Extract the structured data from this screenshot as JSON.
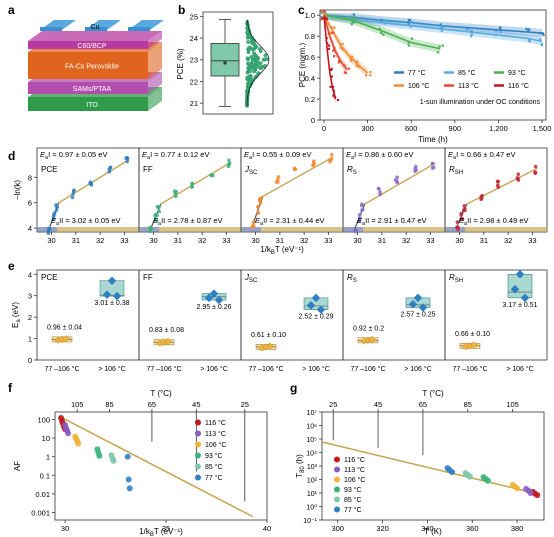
{
  "panels": {
    "a": {
      "label": "a",
      "layers": [
        {
          "name": "Cu",
          "color": "#5aaadf"
        },
        {
          "name": "C60/BCP",
          "color": "#b83aa0"
        },
        {
          "name": "FA-Cs Perovskite",
          "color": "#e0641e"
        },
        {
          "name": "SAMs/PTAA",
          "color": "#b24fae"
        },
        {
          "name": "ITO",
          "color": "#2f9a4a"
        }
      ]
    },
    "b": {
      "label": "b",
      "ylabel": "PCE (%)",
      "ylim": [
        20.5,
        25.2
      ],
      "yticks": [
        21,
        22,
        23,
        24,
        25
      ],
      "box": {
        "min": 20.85,
        "q1": 22.25,
        "median": 22.95,
        "q3": 23.75,
        "max": 24.85,
        "mean": 22.85
      },
      "box_color": "#7fc8a9",
      "point_color": "#3ab07a"
    },
    "c": {
      "label": "c",
      "ylabel": "PCE (norm.)",
      "xlabel": "Time (h)",
      "xticks": [
        0,
        300,
        600,
        900,
        1200,
        1500
      ],
      "yticks": [
        0,
        0.2,
        0.4,
        0.6,
        0.8,
        1.0
      ],
      "ytick_labels": [
        "0",
        "0.2",
        "0.4",
        "0.6",
        "0.8",
        "1.0"
      ],
      "xlim": [
        0,
        1500
      ],
      "ylim": [
        0,
        1.05
      ],
      "annotation": "1-sun illumination under OC conditions",
      "legend": [
        "77 °C",
        "85 °C",
        "93 °C",
        "106 °C",
        "113 °C",
        "116 °C"
      ],
      "series": [
        {
          "name": "77 °C",
          "color": "#2f7fc1",
          "x": [
            0,
            200,
            400,
            600,
            800,
            1000,
            1200,
            1400,
            1500
          ],
          "y": [
            1.0,
            0.98,
            0.95,
            0.93,
            0.9,
            0.88,
            0.86,
            0.84,
            0.83
          ]
        },
        {
          "name": "85 °C",
          "color": "#5aaadf",
          "x": [
            0,
            200,
            400,
            600,
            800,
            1000,
            1200,
            1400,
            1500
          ],
          "y": [
            1.0,
            0.96,
            0.93,
            0.9,
            0.87,
            0.84,
            0.81,
            0.78,
            0.75
          ]
        },
        {
          "name": "93 °C",
          "color": "#4caf50",
          "x": [
            0,
            200,
            400,
            600,
            800
          ],
          "y": [
            1.0,
            0.95,
            0.85,
            0.74,
            0.68
          ]
        },
        {
          "name": "106 °C",
          "color": "#f58a34",
          "x": [
            0,
            60,
            120,
            180,
            240,
            300
          ],
          "y": [
            1.0,
            0.85,
            0.7,
            0.6,
            0.52,
            0.45
          ]
        },
        {
          "name": "113 °C",
          "color": "#e24a33",
          "x": [
            0,
            40,
            80,
            120,
            160
          ],
          "y": [
            1.0,
            0.8,
            0.65,
            0.55,
            0.48
          ]
        },
        {
          "name": "116 °C",
          "color": "#c0181e",
          "x": [
            0,
            20,
            40,
            60,
            80
          ],
          "y": [
            1.0,
            0.7,
            0.45,
            0.3,
            0.2
          ]
        }
      ]
    },
    "d": {
      "label": "d",
      "ylabel": "−ln(k)",
      "xlabel": "1/k",
      "xlabel_sub": "B",
      "xlabel_tail": "T (eV⁻¹)",
      "xticks": [
        30,
        31,
        32,
        33
      ],
      "yticks": [
        4,
        6,
        8
      ],
      "xlim": [
        29.4,
        33.6
      ],
      "ylim": [
        3.7,
        10.3
      ],
      "subpanels": [
        {
          "name": "PCE",
          "eaI": "0.97 ± 0.05 eV",
          "eaII": "3.02 ± 0.05 eV",
          "color": "#2f7fc1",
          "x": [
            29.9,
            30.1,
            30.2,
            30.9,
            31.6,
            32.4,
            33.1
          ],
          "y": [
            3.9,
            4.9,
            5.7,
            6.7,
            7.6,
            8.5,
            9.3
          ]
        },
        {
          "name": "FF",
          "eaI": "0.77 ± 0.12 eV",
          "eaII": "2.78 ± 0.87 eV",
          "color": "#3ab07a",
          "x": [
            29.9,
            30.1,
            30.2,
            30.9,
            31.6,
            32.4,
            33.1
          ],
          "y": [
            4.0,
            4.8,
            5.6,
            6.8,
            7.5,
            8.4,
            9.1
          ]
        },
        {
          "name": "J",
          "name_sub": "SC",
          "eaI": "0.55 ± 0.09 eV",
          "eaII": "2.31 ± 0.44 eV",
          "color": "#f58a34",
          "x": [
            29.9,
            30.1,
            30.2,
            30.9,
            31.6,
            32.4,
            33.1
          ],
          "y": [
            4.3,
            5.4,
            6.2,
            7.8,
            8.5,
            9.1,
            9.5
          ]
        },
        {
          "name": "R",
          "name_sub": "S",
          "eaI": "0.86 ± 0.60 eV",
          "eaII": "2.91 ± 0.47 eV",
          "color": "#8a6cc8",
          "x": [
            29.9,
            30.1,
            30.2,
            30.9,
            31.6,
            32.4,
            33.1
          ],
          "y": [
            4.0,
            4.8,
            5.6,
            6.9,
            7.8,
            8.6,
            9.0
          ]
        },
        {
          "name": "R",
          "name_sub": "SH",
          "eaI": "0.66 ± 0.47 eV",
          "eaII": "2.98 ± 0.49 eV",
          "color": "#c0283a",
          "x": [
            29.9,
            30.1,
            30.2,
            30.9,
            31.6,
            32.4,
            33.1
          ],
          "y": [
            4.2,
            4.9,
            5.6,
            6.5,
            7.4,
            8.0,
            8.6
          ]
        }
      ]
    },
    "e": {
      "label": "e",
      "ylabel": "E",
      "ylabel_sub": "a",
      "ylabel_tail": " (eV)",
      "yticks": [
        0,
        1,
        2,
        3,
        4
      ],
      "ylim": [
        0,
        4.2
      ],
      "categories": [
        "77 –106 °C",
        "> 106 °C"
      ],
      "low_color": "#f0b43a",
      "high_color": "#2e7fc1",
      "subpanels": [
        {
          "name": "PCE",
          "low": 0.96,
          "low_label": "0.96 ± 0.04",
          "high": 3.01,
          "high_label": "3.01 ± 0.38",
          "high_points": [
            3.7,
            3.05,
            2.98
          ]
        },
        {
          "name": "FF",
          "low": 0.83,
          "low_label": "0.83 ± 0.08",
          "high": 2.95,
          "high_label": "2.95 ± 0.26",
          "high_points": [
            3.1,
            2.9,
            2.8
          ]
        },
        {
          "name": "J",
          "name_sub": "SC",
          "low": 0.61,
          "low_label": "0.61 ± 0.10",
          "high": 2.52,
          "high_label": "2.52 ± 0.29",
          "high_points": [
            2.9,
            2.55,
            2.35
          ]
        },
        {
          "name": "R",
          "name_sub": "S",
          "low": 0.92,
          "low_label": "0.92 ± 0.2",
          "high": 2.57,
          "high_label": "2.57 ± 0.25",
          "high_points": [
            2.9,
            2.6,
            2.45
          ]
        },
        {
          "name": "R",
          "name_sub": "SH",
          "low": 0.66,
          "low_label": "0.66 ± 0.10",
          "high": 3.17,
          "high_label": "3.17 ± 0.51",
          "high_points": [
            4.0,
            3.3,
            2.9
          ]
        }
      ]
    },
    "f": {
      "label": "f",
      "ylabel": "AF",
      "xlabel": "1/k",
      "xlabel_sub": "B",
      "xlabel_tail": "T (eV⁻¹)",
      "top_label": "T (°C)",
      "top_ticks": [
        {
          "label": "105",
          "x": 30.6
        },
        {
          "label": "85",
          "x": 32.2
        },
        {
          "label": "65",
          "x": 34.3
        },
        {
          "label": "45",
          "x": 36.5
        },
        {
          "label": "25",
          "x": 38.9
        }
      ],
      "xticks": [
        30,
        35,
        40
      ],
      "yticks": [
        "100",
        "10",
        "1",
        "0.1",
        "0.01",
        "0.001"
      ],
      "xlim": [
        29.5,
        40
      ],
      "logylim": [
        -3.4,
        2.4
      ],
      "fit": {
        "x": [
          29.7,
          39.3
        ],
        "y": [
          150,
          0.0006
        ]
      },
      "series": [
        {
          "name": "116 °C",
          "color": "#c0181e",
          "x": [
            29.8,
            29.85,
            29.9,
            29.95,
            30.0
          ],
          "y": [
            120,
            80,
            60,
            40,
            30
          ]
        },
        {
          "name": "113 °C",
          "color": "#8a5cc0",
          "x": [
            30.0,
            30.05,
            30.1,
            30.15
          ],
          "y": [
            50,
            35,
            25,
            18
          ]
        },
        {
          "name": "106 °C",
          "color": "#f0b43a",
          "x": [
            30.5,
            30.55,
            30.6,
            30.65
          ],
          "y": [
            12,
            9,
            7,
            5
          ]
        },
        {
          "name": "93 °C",
          "color": "#3ab07a",
          "x": [
            31.6,
            31.65,
            31.7
          ],
          "y": [
            2.5,
            1.6,
            1.1
          ]
        },
        {
          "name": "85 °C",
          "color": "#7fc8a9",
          "x": [
            32.3,
            32.35,
            32.4
          ],
          "y": [
            1.2,
            0.8,
            0.6
          ]
        },
        {
          "name": "77 °C",
          "color": "#2f7fc1",
          "x": [
            33.1,
            33.15,
            33.2
          ],
          "y": [
            1.0,
            0.06,
            0.02
          ]
        }
      ]
    },
    "g": {
      "label": "g",
      "ylabel": "T",
      "ylabel_sub": "80",
      "ylabel_tail": " (h)",
      "xlabel": "T (K)",
      "top_label": "T (°C)",
      "top_ticks": [
        {
          "label": "25",
          "x": 298
        },
        {
          "label": "45",
          "x": 318
        },
        {
          "label": "65",
          "x": 338
        },
        {
          "label": "85",
          "x": 358
        },
        {
          "label": "105",
          "x": 378
        }
      ],
      "xticks": [
        300,
        320,
        340,
        360,
        380
      ],
      "yticks": [
        "10⁷",
        "10⁶",
        "10⁵",
        "10⁴",
        "10³",
        "10²",
        "10¹",
        "10⁰",
        "10⁻¹"
      ],
      "xlim": [
        293,
        392
      ],
      "logylim": [
        -1,
        7
      ],
      "fit": {
        "x": [
          293,
          390
        ],
        "y": [
          60000,
          8
        ]
      },
      "series": [
        {
          "name": "116 °C",
          "color": "#c0181e",
          "x": [
            387,
            388,
            389
          ],
          "y": [
            12,
            9,
            7
          ]
        },
        {
          "name": "113 °C",
          "color": "#8a5cc0",
          "x": [
            384,
            385,
            386
          ],
          "y": [
            20,
            15,
            10
          ]
        },
        {
          "name": "106 °C",
          "color": "#f0b43a",
          "x": [
            378,
            379,
            380
          ],
          "y": [
            40,
            30,
            22
          ]
        },
        {
          "name": "93 °C",
          "color": "#3ab07a",
          "x": [
            365,
            366,
            367
          ],
          "y": [
            150,
            110,
            80
          ]
        },
        {
          "name": "85 °C",
          "color": "#7fc8a9",
          "x": [
            357,
            358,
            359
          ],
          "y": [
            300,
            220,
            160
          ]
        },
        {
          "name": "77 °C",
          "color": "#2f7fc1",
          "x": [
            349,
            350,
            351
          ],
          "y": [
            700,
            500,
            350
          ]
        }
      ]
    }
  }
}
